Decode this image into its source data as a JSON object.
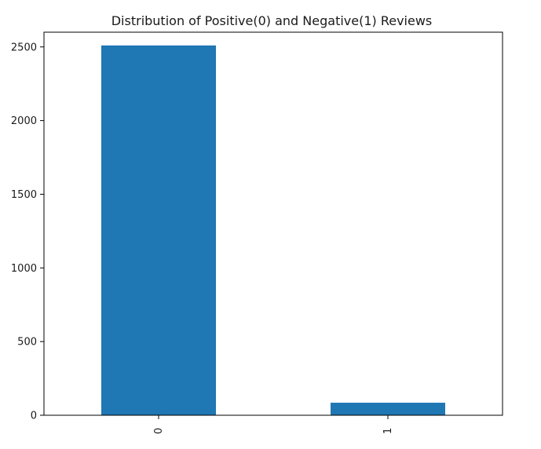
{
  "chart_data": {
    "type": "bar",
    "title": "Distribution of Positive(0) and Negative(1) Reviews",
    "xlabel": "",
    "ylabel": "",
    "categories": [
      "0",
      "1"
    ],
    "values": [
      2510,
      85
    ],
    "ylim": [
      0,
      2600
    ],
    "yticks": [
      0,
      500,
      1000,
      1500,
      2000,
      2500
    ],
    "ytick_labels": [
      "0",
      "500",
      "1000",
      "1500",
      "2000",
      "2500"
    ],
    "bar_color": "#1f77b4",
    "grid": false,
    "x_tick_rotation": "vertical"
  }
}
